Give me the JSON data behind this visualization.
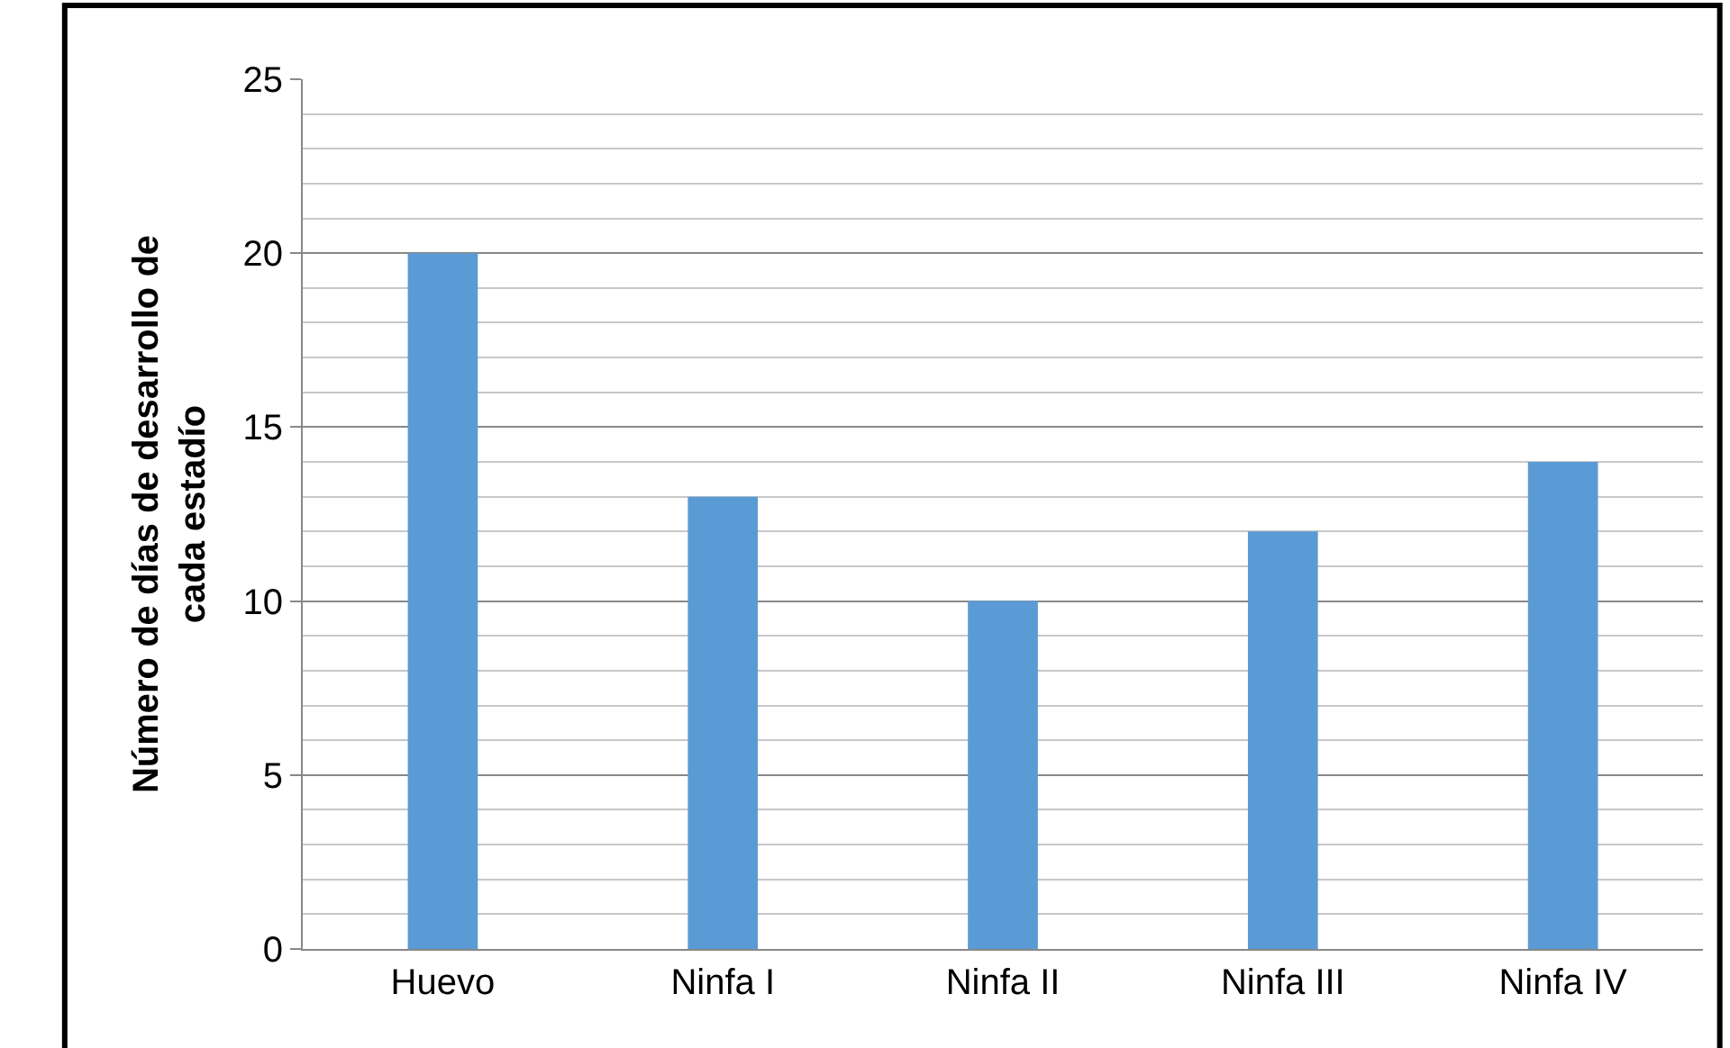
{
  "chart_data": {
    "type": "bar",
    "ylabel": "Número de días de desarrollo de cada estadío",
    "categories": [
      "Huevo",
      "Ninfa I",
      "Ninfa II",
      "Ninfa III",
      "Ninfa IV"
    ],
    "values": [
      20,
      13,
      10,
      12,
      14
    ],
    "color": "#5b9bd5",
    "ylim": [
      0,
      25
    ],
    "yticks": [
      0,
      5,
      10,
      15,
      20,
      25
    ],
    "grid": "y"
  }
}
